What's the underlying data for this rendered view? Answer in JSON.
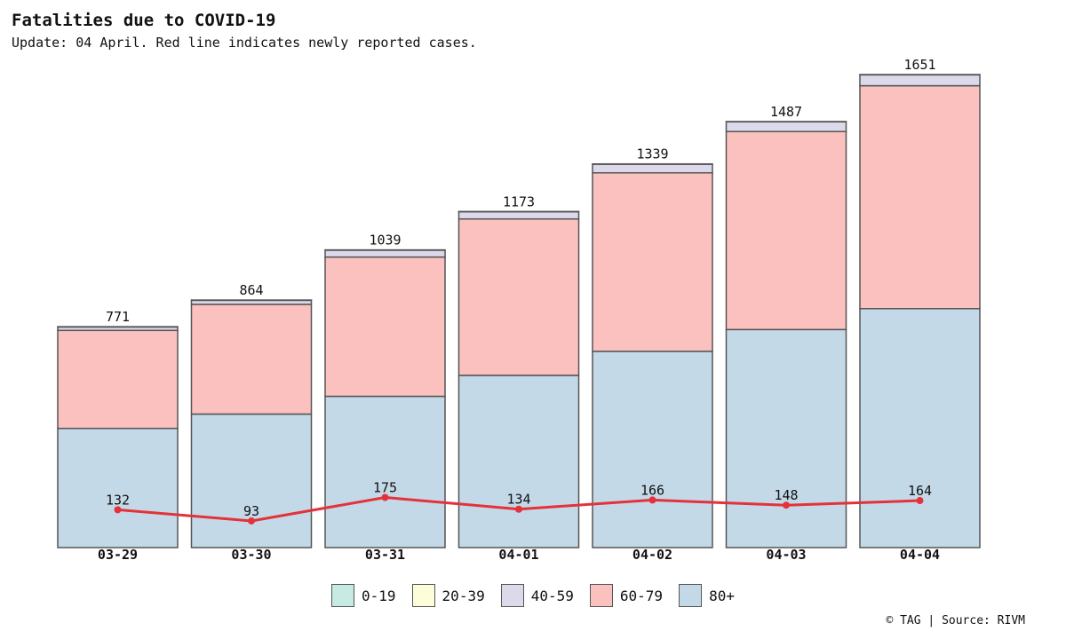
{
  "title": "Fatalities due to COVID-19",
  "subtitle": "Update: 04 April. Red line indicates newly reported cases.",
  "footer": "© TAG | Source: RIVM",
  "colors": {
    "0-19": "#c7ebe3",
    "20-39": "#fefdd9",
    "40-59": "#dcd9ea",
    "60-79": "#fbc1bf",
    "80+": "#c4d9e7",
    "line": "#e4323a",
    "border": "#555555"
  },
  "chart_data": {
    "type": "bar",
    "stacked": true,
    "categories": [
      "03-29",
      "03-30",
      "03-31",
      "04-01",
      "04-02",
      "04-03",
      "04-04"
    ],
    "series": [
      {
        "name": "0-19",
        "values": [
          0,
          0,
          0,
          0,
          0,
          0,
          0
        ]
      },
      {
        "name": "20-39",
        "values": [
          1,
          1,
          1,
          1,
          1,
          1,
          1
        ]
      },
      {
        "name": "40-59",
        "values": [
          12,
          14,
          24,
          25,
          30,
          34,
          38
        ]
      },
      {
        "name": "60-79",
        "values": [
          342,
          383,
          486,
          546,
          623,
          691,
          778
        ]
      },
      {
        "name": "80+",
        "values": [
          416,
          466,
          528,
          601,
          685,
          761,
          834
        ]
      }
    ],
    "totals": [
      771,
      864,
      1039,
      1173,
      1339,
      1487,
      1651
    ],
    "line": {
      "name": "newly reported cases",
      "values": [
        132,
        93,
        175,
        134,
        166,
        148,
        164
      ]
    },
    "ylim": [
      0,
      1651
    ],
    "legend_position": "bottom-center",
    "grid": false
  }
}
